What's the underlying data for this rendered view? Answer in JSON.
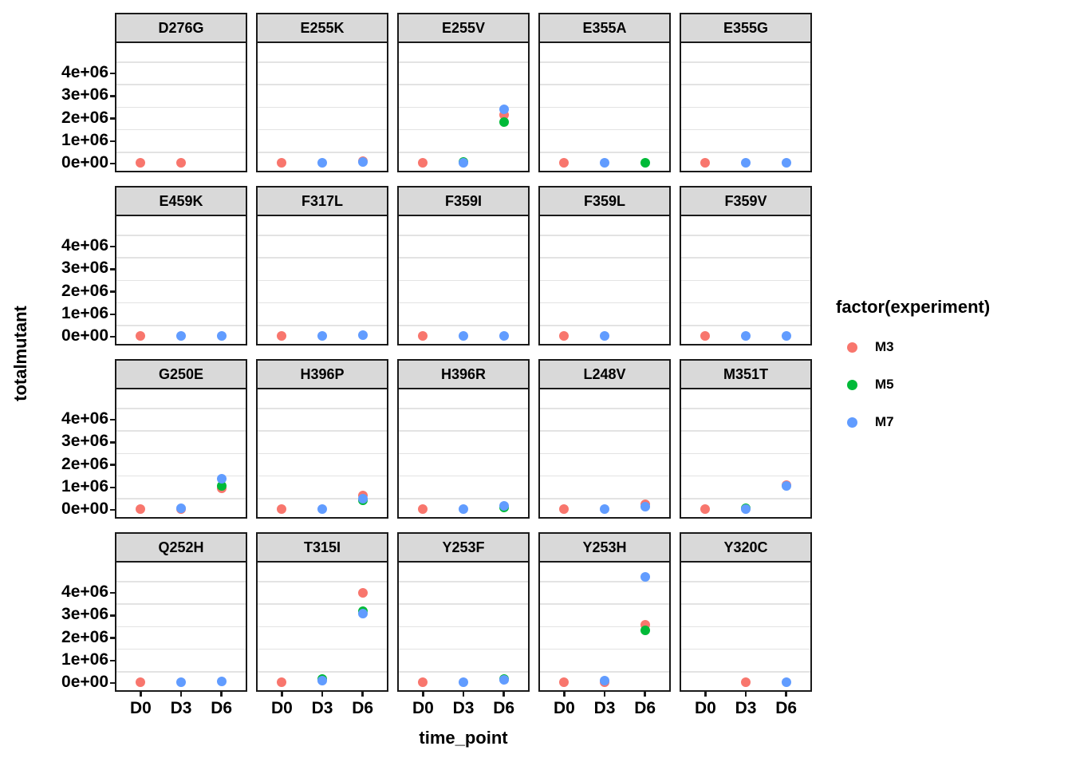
{
  "chart_data": {
    "type": "scatter",
    "faceted": true,
    "xlabel": "time_point",
    "ylabel": "totalmutant",
    "x_categories": [
      "D0",
      "D3",
      "D6"
    ],
    "y_tick_labels": [
      "0e+00",
      "1e+06",
      "2e+06",
      "3e+06",
      "4e+06"
    ],
    "y_tick_values": [
      0,
      1000000,
      2000000,
      3000000,
      4000000
    ],
    "y_domain": [
      -310000,
      5340000
    ],
    "minor_gridlines": [
      500000,
      1500000,
      2500000,
      3500000,
      4500000
    ],
    "grid": "minor-only",
    "legend": {
      "title": "factor(experiment)",
      "position": "right",
      "items": [
        {
          "label": "M3",
          "color": "#F8766D"
        },
        {
          "label": "M5",
          "color": "#00BA38"
        },
        {
          "label": "M7",
          "color": "#619CFF"
        }
      ]
    },
    "facets": [
      {
        "label": "D276G",
        "points": [
          {
            "e": "M3",
            "t": "D0",
            "v": 30000
          },
          {
            "e": "M3",
            "t": "D3",
            "v": 30000
          }
        ]
      },
      {
        "label": "E255K",
        "points": [
          {
            "e": "M3",
            "t": "D0",
            "v": 30000
          },
          {
            "e": "M3",
            "t": "D6",
            "v": 120000
          },
          {
            "e": "M7",
            "t": "D3",
            "v": 30000
          },
          {
            "e": "M7",
            "t": "D6",
            "v": 80000
          }
        ]
      },
      {
        "label": "E255V",
        "points": [
          {
            "e": "M3",
            "t": "D0",
            "v": 30000
          },
          {
            "e": "M3",
            "t": "D6",
            "v": 2150000
          },
          {
            "e": "M5",
            "t": "D3",
            "v": 80000
          },
          {
            "e": "M5",
            "t": "D6",
            "v": 1850000
          },
          {
            "e": "M7",
            "t": "D3",
            "v": 60000
          },
          {
            "e": "M7",
            "t": "D6",
            "v": 2400000
          }
        ]
      },
      {
        "label": "E355A",
        "points": [
          {
            "e": "M3",
            "t": "D0",
            "v": 30000
          },
          {
            "e": "M7",
            "t": "D3",
            "v": 30000
          },
          {
            "e": "M5",
            "t": "D6",
            "v": 40000
          }
        ]
      },
      {
        "label": "E355G",
        "points": [
          {
            "e": "M3",
            "t": "D0",
            "v": 30000
          },
          {
            "e": "M7",
            "t": "D3",
            "v": 30000
          },
          {
            "e": "M7",
            "t": "D6",
            "v": 40000
          }
        ]
      },
      {
        "label": "E459K",
        "points": [
          {
            "e": "M3",
            "t": "D0",
            "v": 30000
          },
          {
            "e": "M7",
            "t": "D3",
            "v": 40000
          },
          {
            "e": "M7",
            "t": "D6",
            "v": 40000
          }
        ]
      },
      {
        "label": "F317L",
        "points": [
          {
            "e": "M3",
            "t": "D0",
            "v": 30000
          },
          {
            "e": "M7",
            "t": "D3",
            "v": 40000
          },
          {
            "e": "M7",
            "t": "D6",
            "v": 70000
          }
        ]
      },
      {
        "label": "F359I",
        "points": [
          {
            "e": "M3",
            "t": "D0",
            "v": 40000
          },
          {
            "e": "M7",
            "t": "D3",
            "v": 40000
          },
          {
            "e": "M7",
            "t": "D6",
            "v": 50000
          }
        ]
      },
      {
        "label": "F359L",
        "points": [
          {
            "e": "M3",
            "t": "D0",
            "v": 30000
          },
          {
            "e": "M7",
            "t": "D3",
            "v": 40000
          }
        ]
      },
      {
        "label": "F359V",
        "points": [
          {
            "e": "M3",
            "t": "D0",
            "v": 40000
          },
          {
            "e": "M7",
            "t": "D3",
            "v": 40000
          },
          {
            "e": "M7",
            "t": "D6",
            "v": 60000
          }
        ]
      },
      {
        "label": "G250E",
        "points": [
          {
            "e": "M3",
            "t": "D0",
            "v": 30000
          },
          {
            "e": "M3",
            "t": "D3",
            "v": 40000
          },
          {
            "e": "M3",
            "t": "D6",
            "v": 950000
          },
          {
            "e": "M5",
            "t": "D6",
            "v": 1050000
          },
          {
            "e": "M7",
            "t": "D3",
            "v": 80000
          },
          {
            "e": "M7",
            "t": "D6",
            "v": 1400000
          }
        ]
      },
      {
        "label": "H396P",
        "points": [
          {
            "e": "M3",
            "t": "D0",
            "v": 30000
          },
          {
            "e": "M3",
            "t": "D6",
            "v": 650000
          },
          {
            "e": "M5",
            "t": "D6",
            "v": 420000
          },
          {
            "e": "M7",
            "t": "D3",
            "v": 50000
          },
          {
            "e": "M7",
            "t": "D6",
            "v": 500000
          }
        ]
      },
      {
        "label": "H396R",
        "points": [
          {
            "e": "M3",
            "t": "D0",
            "v": 30000
          },
          {
            "e": "M5",
            "t": "D6",
            "v": 120000
          },
          {
            "e": "M7",
            "t": "D3",
            "v": 30000
          },
          {
            "e": "M7",
            "t": "D6",
            "v": 200000
          }
        ]
      },
      {
        "label": "L248V",
        "points": [
          {
            "e": "M3",
            "t": "D0",
            "v": 30000
          },
          {
            "e": "M3",
            "t": "D6",
            "v": 250000
          },
          {
            "e": "M7",
            "t": "D3",
            "v": 30000
          },
          {
            "e": "M7",
            "t": "D6",
            "v": 150000
          }
        ]
      },
      {
        "label": "M351T",
        "points": [
          {
            "e": "M3",
            "t": "D0",
            "v": 30000
          },
          {
            "e": "M3",
            "t": "D6",
            "v": 1120000
          },
          {
            "e": "M5",
            "t": "D3",
            "v": 70000
          },
          {
            "e": "M7",
            "t": "D3",
            "v": 40000
          },
          {
            "e": "M7",
            "t": "D6",
            "v": 1050000
          }
        ]
      },
      {
        "label": "Q252H",
        "points": [
          {
            "e": "M3",
            "t": "D0",
            "v": 30000
          },
          {
            "e": "M7",
            "t": "D3",
            "v": 30000
          },
          {
            "e": "M7",
            "t": "D6",
            "v": 90000
          }
        ]
      },
      {
        "label": "T315I",
        "points": [
          {
            "e": "M3",
            "t": "D0",
            "v": 30000
          },
          {
            "e": "M3",
            "t": "D6",
            "v": 4000000
          },
          {
            "e": "M5",
            "t": "D3",
            "v": 180000
          },
          {
            "e": "M5",
            "t": "D6",
            "v": 3200000
          },
          {
            "e": "M7",
            "t": "D3",
            "v": 100000
          },
          {
            "e": "M7",
            "t": "D6",
            "v": 3080000
          }
        ]
      },
      {
        "label": "Y253F",
        "points": [
          {
            "e": "M3",
            "t": "D0",
            "v": 30000
          },
          {
            "e": "M5",
            "t": "D6",
            "v": 170000
          },
          {
            "e": "M7",
            "t": "D3",
            "v": 30000
          },
          {
            "e": "M7",
            "t": "D6",
            "v": 140000
          }
        ]
      },
      {
        "label": "Y253H",
        "points": [
          {
            "e": "M3",
            "t": "D0",
            "v": 30000
          },
          {
            "e": "M3",
            "t": "D3",
            "v": 40000
          },
          {
            "e": "M3",
            "t": "D6",
            "v": 2600000
          },
          {
            "e": "M5",
            "t": "D6",
            "v": 2350000
          },
          {
            "e": "M7",
            "t": "D3",
            "v": 130000
          },
          {
            "e": "M7",
            "t": "D6",
            "v": 4700000
          }
        ]
      },
      {
        "label": "Y320C",
        "points": [
          {
            "e": "M3",
            "t": "D3",
            "v": 30000
          },
          {
            "e": "M7",
            "t": "D6",
            "v": 60000
          }
        ]
      }
    ]
  }
}
